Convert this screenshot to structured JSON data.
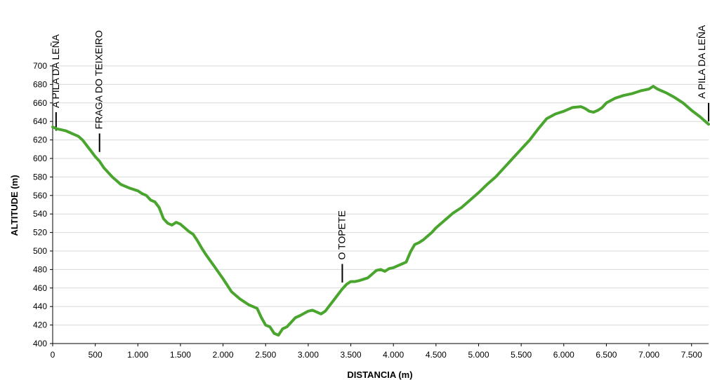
{
  "chart_data": {
    "type": "line",
    "title": "",
    "xlabel": "DISTANCIA (m)",
    "ylabel": "ALTITUDE (m)",
    "xlim": [
      0,
      7700
    ],
    "ylim": [
      400,
      700
    ],
    "x_ticks": [
      0,
      500,
      1000,
      1500,
      2000,
      2500,
      3000,
      3500,
      4000,
      4500,
      5000,
      5500,
      6000,
      6500,
      7000,
      7500
    ],
    "x_tick_labels": [
      "0",
      "500",
      "1.000",
      "1.500",
      "2.000",
      "2.500",
      "3.000",
      "3.500",
      "4.000",
      "4.500",
      "5.000",
      "5.500",
      "6.000",
      "6.500",
      "7.000",
      "7.500"
    ],
    "y_ticks": [
      400,
      420,
      440,
      460,
      480,
      500,
      520,
      540,
      560,
      580,
      600,
      620,
      640,
      660,
      680,
      700
    ],
    "y_tick_labels": [
      "400",
      "420",
      "440",
      "460",
      "480",
      "500",
      "520",
      "540",
      "560",
      "580",
      "600",
      "620",
      "640",
      "660",
      "680",
      "700"
    ],
    "grid": true,
    "line_color": "#4aa52e",
    "series": [
      {
        "name": "",
        "x": [
          0,
          50,
          100,
          150,
          200,
          250,
          300,
          350,
          400,
          450,
          500,
          550,
          600,
          700,
          800,
          900,
          1000,
          1050,
          1100,
          1150,
          1200,
          1250,
          1300,
          1350,
          1400,
          1450,
          1500,
          1550,
          1600,
          1650,
          1700,
          1750,
          1800,
          1900,
          2000,
          2100,
          2200,
          2300,
          2400,
          2450,
          2500,
          2550,
          2600,
          2650,
          2700,
          2750,
          2800,
          2850,
          2900,
          3000,
          3050,
          3100,
          3150,
          3200,
          3300,
          3350,
          3400,
          3450,
          3500,
          3550,
          3600,
          3700,
          3750,
          3800,
          3850,
          3900,
          3950,
          4000,
          4050,
          4100,
          4150,
          4200,
          4250,
          4300,
          4350,
          4400,
          4450,
          4500,
          4600,
          4700,
          4800,
          4900,
          5000,
          5100,
          5200,
          5300,
          5400,
          5500,
          5600,
          5700,
          5800,
          5900,
          6000,
          6100,
          6200,
          6250,
          6300,
          6350,
          6400,
          6450,
          6500,
          6600,
          6700,
          6800,
          6900,
          7000,
          7050,
          7100,
          7200,
          7300,
          7400,
          7500,
          7600,
          7700
        ],
        "y": [
          634,
          632,
          631,
          630,
          628,
          626,
          624,
          620,
          614,
          608,
          602,
          597,
          590,
          580,
          572,
          568,
          565,
          562,
          560,
          555,
          553,
          547,
          535,
          530,
          528,
          531,
          529,
          525,
          521,
          518,
          511,
          503,
          496,
          483,
          470,
          456,
          448,
          442,
          438,
          428,
          420,
          418,
          411,
          409,
          416,
          418,
          423,
          428,
          430,
          435,
          436,
          434,
          432,
          435,
          447,
          453,
          459,
          464,
          467,
          467,
          468,
          471,
          475,
          479,
          480,
          478,
          481,
          482,
          484,
          486,
          488,
          499,
          507,
          509,
          512,
          516,
          520,
          525,
          533,
          541,
          547,
          555,
          563,
          572,
          580,
          590,
          600,
          610,
          620,
          632,
          643,
          648,
          651,
          655,
          656,
          654,
          651,
          650,
          652,
          655,
          660,
          665,
          668,
          670,
          673,
          675,
          678,
          675,
          671,
          666,
          660,
          652,
          645,
          637
        ]
      }
    ],
    "annotations": [
      {
        "label": "A PILA DA LEÑA",
        "x": 40,
        "tick_y": [
          630,
          650
        ]
      },
      {
        "label": "FRAGA DO TEIXEIRO",
        "x": 550,
        "tick_y": [
          607,
          627
        ]
      },
      {
        "label": "O TOPETE",
        "x": 3400,
        "tick_y": [
          466,
          486
        ]
      },
      {
        "label": "A PILA DA LEÑA",
        "x": 7700,
        "tick_y": [
          640,
          660
        ]
      }
    ]
  }
}
